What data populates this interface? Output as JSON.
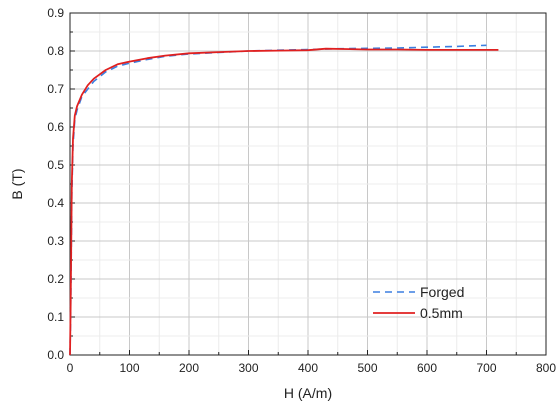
{
  "chart_data": {
    "type": "line",
    "title": "",
    "xlabel": "H (A/m)",
    "ylabel": "B (T)",
    "xlim": [
      0,
      800
    ],
    "ylim": [
      0,
      0.9
    ],
    "xticks": [
      "0",
      "100",
      "200",
      "300",
      "400",
      "500",
      "600",
      "700",
      "800"
    ],
    "yticks": [
      "0.0",
      "0.1",
      "0.2",
      "0.3",
      "0.4",
      "0.5",
      "0.6",
      "0.7",
      "0.8",
      "0.9"
    ],
    "grid": true,
    "legend_position": "bottom-right",
    "series": [
      {
        "name": "Forged",
        "color": "#3b7fe0",
        "style": "dashed",
        "x": [
          0,
          1,
          2,
          3,
          5,
          8,
          12,
          20,
          30,
          40,
          60,
          80,
          100,
          130,
          160,
          200,
          250,
          300,
          350,
          400,
          450,
          500,
          550,
          600,
          650,
          700
        ],
        "y": [
          0.0,
          0.1,
          0.25,
          0.42,
          0.55,
          0.62,
          0.645,
          0.68,
          0.7,
          0.72,
          0.745,
          0.76,
          0.768,
          0.778,
          0.786,
          0.792,
          0.796,
          0.8,
          0.802,
          0.804,
          0.806,
          0.807,
          0.808,
          0.81,
          0.812,
          0.815
        ]
      },
      {
        "name": "0.5mm",
        "color": "#e02020",
        "style": "solid",
        "x": [
          0,
          1,
          2,
          3,
          5,
          8,
          12,
          20,
          30,
          40,
          60,
          80,
          100,
          130,
          160,
          200,
          250,
          300,
          350,
          400,
          430,
          470,
          500,
          550,
          600,
          650,
          700,
          720
        ],
        "y": [
          0.0,
          0.12,
          0.28,
          0.45,
          0.57,
          0.63,
          0.655,
          0.685,
          0.71,
          0.727,
          0.75,
          0.765,
          0.772,
          0.781,
          0.788,
          0.794,
          0.797,
          0.8,
          0.801,
          0.802,
          0.806,
          0.805,
          0.804,
          0.804,
          0.803,
          0.803,
          0.803,
          0.803
        ]
      }
    ]
  }
}
